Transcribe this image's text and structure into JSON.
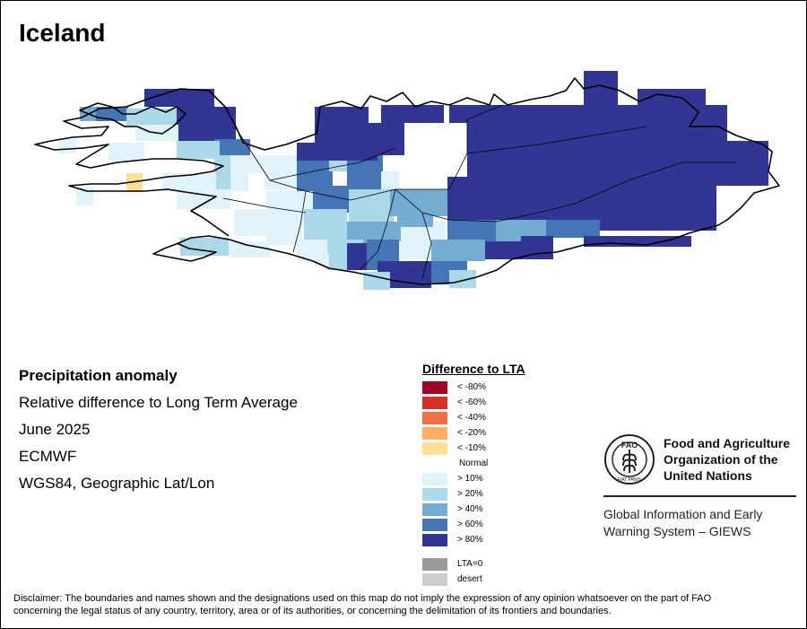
{
  "map": {
    "title": "Iceland"
  },
  "info": {
    "indicator": "Precipitation anomaly",
    "description": "Relative difference to Long Term Average",
    "period": "June 2025",
    "source": "ECMWF",
    "projection": "WGS84, Geographic Lat/Lon"
  },
  "legend": {
    "title": "Difference to LTA",
    "items": [
      {
        "label": "< -80%",
        "color": "#a50026"
      },
      {
        "label": "< -60%",
        "color": "#d73027"
      },
      {
        "label": "< -40%",
        "color": "#f46d43"
      },
      {
        "label": "< -20%",
        "color": "#fdae61"
      },
      {
        "label": "< -10%",
        "color": "#fee090"
      },
      {
        "label": "Normal",
        "color": "#ffffff"
      },
      {
        "label": "> 10%",
        "color": "#e0f3f8"
      },
      {
        "label": "> 20%",
        "color": "#abd9e9"
      },
      {
        "label": "> 40%",
        "color": "#74add1"
      },
      {
        "label": "> 60%",
        "color": "#4575b4"
      },
      {
        "label": "> 80%",
        "color": "#313695"
      }
    ],
    "extra": [
      {
        "label": "LTA=0",
        "color": "#999999"
      },
      {
        "label": "desert",
        "color": "#cccccc"
      }
    ]
  },
  "org": {
    "logo_letters": "FAO",
    "logo_motto": "FIAT PANIS",
    "name_lines": [
      "Food and Agriculture",
      "Organization of the",
      "United Nations"
    ],
    "giews_lines": [
      "Global Information and Early",
      "Warning System – GIEWS"
    ]
  },
  "disclaimer": {
    "line1": "Disclaimer: The boundaries and names shown and the designations used on this map do not imply the expression of any opinion whatsoever on the part of FAO",
    "line2": "concerning the legal status of any country, territory, area or of its authorities, or concerning the delimitation of its frontiers and boundaries."
  }
}
